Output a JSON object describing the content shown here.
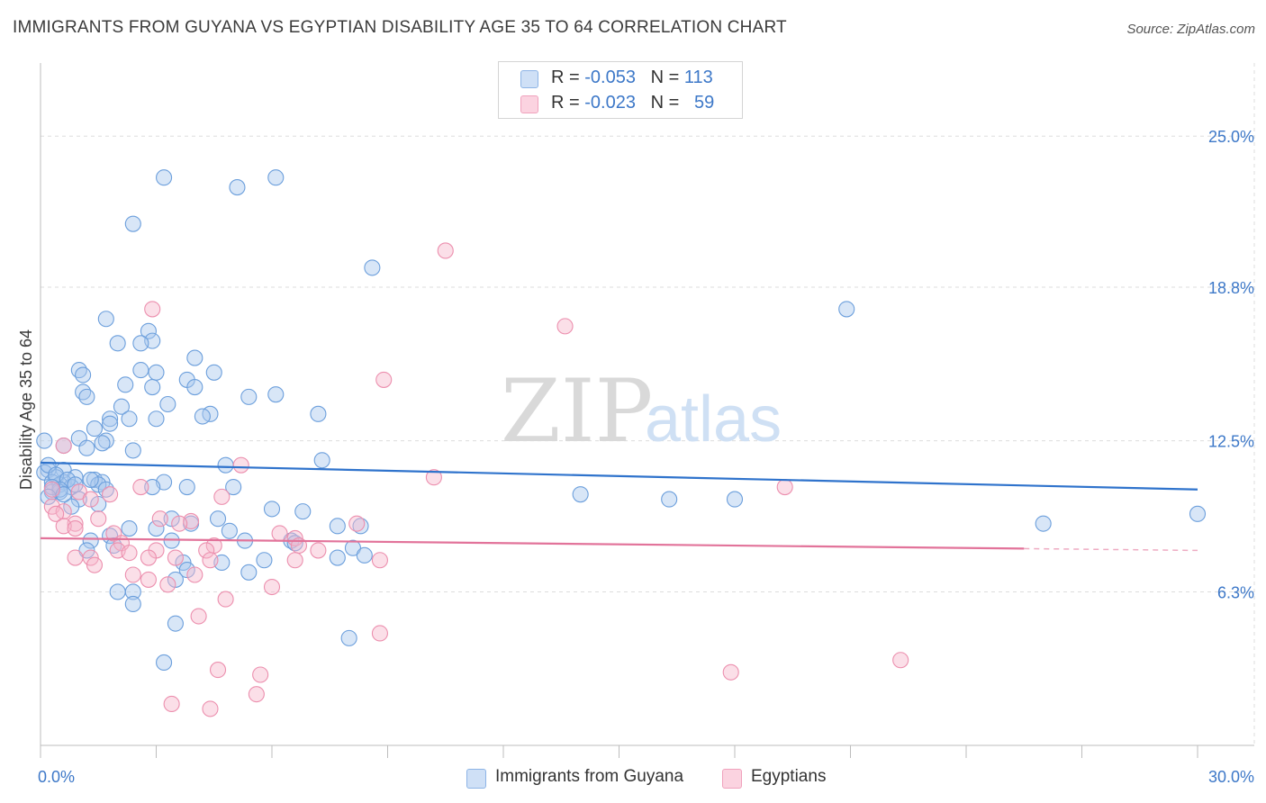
{
  "header": {
    "title": "IMMIGRANTS FROM GUYANA VS EGYPTIAN DISABILITY AGE 35 TO 64 CORRELATION CHART",
    "source": "Source: ZipAtlas.com"
  },
  "watermark": {
    "zip": "ZIP",
    "atlas": "atlas"
  },
  "legend": {
    "rows": [
      {
        "r_label": "R =",
        "r_value": "-0.053",
        "n_label": "N =",
        "n_value": "113",
        "color": "#a9c8ee"
      },
      {
        "r_label": "R =",
        "r_value": "-0.023",
        "n_label": "N =",
        "n_value": "59",
        "color": "#f6b9cd"
      }
    ]
  },
  "bottom_legend": {
    "items": [
      {
        "label": "Immigrants from Guyana",
        "color": "#a9c8ee"
      },
      {
        "label": "Egyptians",
        "color": "#f6b9cd"
      }
    ]
  },
  "chart_data": {
    "type": "scatter",
    "ylabel": "Disability Age 35 to 64",
    "xlim": [
      0,
      30
    ],
    "ylim": [
      0,
      28
    ],
    "x_tick_labels": {
      "min": "0.0%",
      "max": "30.0%"
    },
    "y_ticks": [
      {
        "value": 6.3,
        "label": "6.3%"
      },
      {
        "value": 12.5,
        "label": "12.5%"
      },
      {
        "value": 18.8,
        "label": "18.8%"
      },
      {
        "value": 25.0,
        "label": "25.0%"
      }
    ],
    "grid": true,
    "series": [
      {
        "name": "Immigrants from Guyana",
        "color": "#6c9fdc",
        "fill": "#a9c8ee",
        "line_color": "#2f73cc",
        "trend": {
          "x": [
            0,
            30
          ],
          "y": [
            11.6,
            10.5
          ],
          "dashed_from": null
        },
        "points": [
          [
            3.2,
            23.3
          ],
          [
            5.1,
            22.9
          ],
          [
            6.1,
            23.3
          ],
          [
            2.4,
            21.4
          ],
          [
            8.6,
            19.6
          ],
          [
            20.9,
            17.9
          ],
          [
            1.7,
            17.5
          ],
          [
            2.8,
            17.0
          ],
          [
            2.9,
            16.6
          ],
          [
            2.0,
            16.5
          ],
          [
            2.6,
            16.5
          ],
          [
            4.0,
            15.9
          ],
          [
            1.0,
            15.4
          ],
          [
            2.6,
            15.4
          ],
          [
            3.0,
            15.3
          ],
          [
            4.5,
            15.3
          ],
          [
            1.1,
            15.2
          ],
          [
            3.8,
            15.0
          ],
          [
            2.2,
            14.8
          ],
          [
            2.9,
            14.7
          ],
          [
            4.0,
            14.7
          ],
          [
            1.1,
            14.5
          ],
          [
            5.4,
            14.3
          ],
          [
            6.1,
            14.4
          ],
          [
            1.2,
            14.3
          ],
          [
            3.3,
            14.0
          ],
          [
            2.1,
            13.9
          ],
          [
            7.2,
            13.6
          ],
          [
            4.4,
            13.6
          ],
          [
            4.2,
            13.5
          ],
          [
            1.8,
            13.4
          ],
          [
            2.3,
            13.4
          ],
          [
            3.0,
            13.4
          ],
          [
            1.8,
            13.2
          ],
          [
            1.4,
            13.0
          ],
          [
            1.0,
            12.6
          ],
          [
            1.7,
            12.5
          ],
          [
            1.6,
            12.4
          ],
          [
            0.6,
            12.3
          ],
          [
            1.2,
            12.2
          ],
          [
            2.4,
            12.1
          ],
          [
            7.3,
            11.7
          ],
          [
            4.8,
            11.5
          ],
          [
            0.2,
            11.3
          ],
          [
            0.6,
            11.3
          ],
          [
            0.1,
            11.2
          ],
          [
            0.9,
            11.0
          ],
          [
            0.4,
            11.0
          ],
          [
            0.6,
            10.8
          ],
          [
            1.4,
            10.9
          ],
          [
            1.6,
            10.8
          ],
          [
            3.2,
            10.8
          ],
          [
            0.3,
            10.8
          ],
          [
            0.5,
            10.7
          ],
          [
            1.5,
            10.7
          ],
          [
            0.8,
            10.6
          ],
          [
            2.9,
            10.6
          ],
          [
            3.8,
            10.6
          ],
          [
            5.0,
            10.6
          ],
          [
            1.7,
            10.5
          ],
          [
            0.3,
            10.4
          ],
          [
            0.5,
            10.4
          ],
          [
            14.0,
            10.3
          ],
          [
            16.3,
            10.1
          ],
          [
            18.0,
            10.1
          ],
          [
            1.0,
            10.1
          ],
          [
            1.5,
            9.9
          ],
          [
            0.8,
            9.8
          ],
          [
            6.0,
            9.7
          ],
          [
            6.8,
            9.6
          ],
          [
            3.4,
            9.3
          ],
          [
            4.6,
            9.3
          ],
          [
            3.9,
            9.1
          ],
          [
            7.7,
            9.0
          ],
          [
            8.3,
            9.0
          ],
          [
            26.0,
            9.1
          ],
          [
            30.0,
            9.5
          ],
          [
            2.3,
            8.9
          ],
          [
            3.0,
            8.9
          ],
          [
            4.9,
            8.8
          ],
          [
            1.8,
            8.6
          ],
          [
            1.3,
            8.4
          ],
          [
            3.4,
            8.4
          ],
          [
            5.3,
            8.4
          ],
          [
            6.5,
            8.4
          ],
          [
            6.6,
            8.3
          ],
          [
            1.9,
            8.2
          ],
          [
            8.1,
            8.1
          ],
          [
            1.2,
            8.0
          ],
          [
            8.4,
            7.8
          ],
          [
            7.7,
            7.7
          ],
          [
            5.8,
            7.6
          ],
          [
            3.7,
            7.5
          ],
          [
            4.7,
            7.5
          ],
          [
            3.8,
            7.2
          ],
          [
            5.4,
            7.1
          ],
          [
            3.5,
            6.8
          ],
          [
            2.0,
            6.3
          ],
          [
            2.4,
            6.3
          ],
          [
            2.4,
            5.8
          ],
          [
            3.5,
            5.0
          ],
          [
            8.0,
            4.4
          ],
          [
            3.2,
            3.4
          ],
          [
            0.1,
            12.5
          ],
          [
            0.2,
            11.5
          ],
          [
            0.4,
            11.1
          ],
          [
            0.7,
            10.9
          ],
          [
            0.5,
            10.5
          ],
          [
            1.3,
            10.9
          ],
          [
            0.3,
            10.6
          ],
          [
            0.9,
            10.7
          ],
          [
            0.2,
            10.2
          ],
          [
            0.6,
            10.3
          ]
        ]
      },
      {
        "name": "Egyptians",
        "color": "#ec8fae",
        "fill": "#f6b9cd",
        "line_color": "#e2739a",
        "trend": {
          "x": [
            0,
            30
          ],
          "y": [
            8.5,
            8.0
          ],
          "dashed_from": 25.5
        },
        "points": [
          [
            10.5,
            20.3
          ],
          [
            2.9,
            17.9
          ],
          [
            13.6,
            17.2
          ],
          [
            8.9,
            15.0
          ],
          [
            0.6,
            12.3
          ],
          [
            5.2,
            11.5
          ],
          [
            10.2,
            11.0
          ],
          [
            19.3,
            10.6
          ],
          [
            2.6,
            10.6
          ],
          [
            0.3,
            10.5
          ],
          [
            1.0,
            10.4
          ],
          [
            1.8,
            10.3
          ],
          [
            4.7,
            10.2
          ],
          [
            1.3,
            10.1
          ],
          [
            0.3,
            9.8
          ],
          [
            0.6,
            9.6
          ],
          [
            0.4,
            9.5
          ],
          [
            1.5,
            9.3
          ],
          [
            3.1,
            9.3
          ],
          [
            0.9,
            9.1
          ],
          [
            3.9,
            9.2
          ],
          [
            8.2,
            9.1
          ],
          [
            0.6,
            9.0
          ],
          [
            0.9,
            8.9
          ],
          [
            1.9,
            8.7
          ],
          [
            6.2,
            8.7
          ],
          [
            6.6,
            8.5
          ],
          [
            2.1,
            8.3
          ],
          [
            4.5,
            8.2
          ],
          [
            6.7,
            8.2
          ],
          [
            2.0,
            8.0
          ],
          [
            2.3,
            7.9
          ],
          [
            3.0,
            8.0
          ],
          [
            7.2,
            8.0
          ],
          [
            4.3,
            8.0
          ],
          [
            0.9,
            7.7
          ],
          [
            1.3,
            7.7
          ],
          [
            2.8,
            7.7
          ],
          [
            3.5,
            7.7
          ],
          [
            4.4,
            7.6
          ],
          [
            6.6,
            7.6
          ],
          [
            8.8,
            7.6
          ],
          [
            1.4,
            7.4
          ],
          [
            2.4,
            7.0
          ],
          [
            4.0,
            7.0
          ],
          [
            2.8,
            6.8
          ],
          [
            3.3,
            6.6
          ],
          [
            6.0,
            6.5
          ],
          [
            4.8,
            6.0
          ],
          [
            4.1,
            5.3
          ],
          [
            8.8,
            4.6
          ],
          [
            22.3,
            3.5
          ],
          [
            4.6,
            3.1
          ],
          [
            17.9,
            3.0
          ],
          [
            5.7,
            2.9
          ],
          [
            5.6,
            2.1
          ],
          [
            3.4,
            1.7
          ],
          [
            4.4,
            1.5
          ],
          [
            3.6,
            9.1
          ]
        ]
      }
    ]
  }
}
